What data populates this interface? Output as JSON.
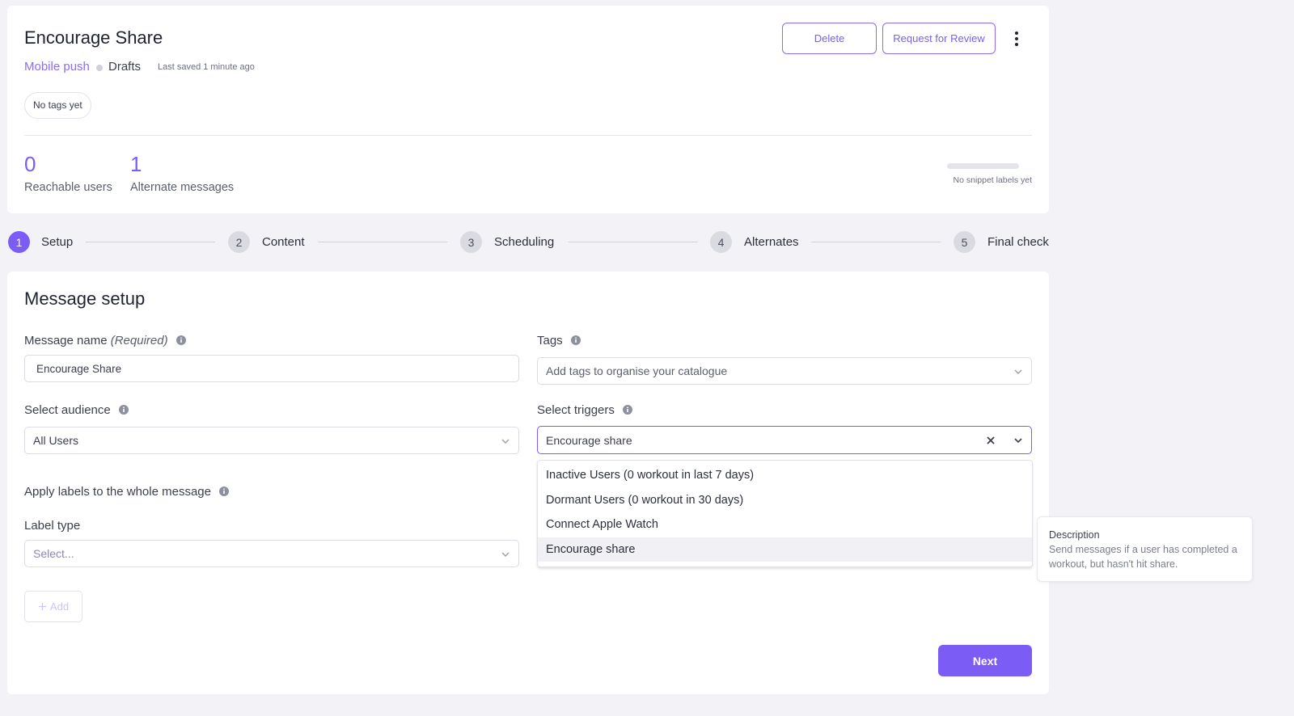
{
  "header": {
    "title": "Encourage Share",
    "channel": "Mobile push",
    "status": "Drafts",
    "last_saved": "Last saved 1 minute ago",
    "tags_chip": "No tags yet",
    "delete_label": "Delete",
    "review_label": "Request for Review",
    "stats": [
      {
        "value": "0",
        "label": "Reachable users"
      },
      {
        "value": "1",
        "label": "Alternate messages"
      }
    ],
    "snippet_labels": "No snippet labels yet"
  },
  "stepper": {
    "steps": [
      {
        "number": "1",
        "label": "Setup",
        "active": true
      },
      {
        "number": "2",
        "label": "Content"
      },
      {
        "number": "3",
        "label": "Scheduling"
      },
      {
        "number": "4",
        "label": "Alternates"
      },
      {
        "number": "5",
        "label": "Final check"
      }
    ]
  },
  "form": {
    "title": "Message setup",
    "message_name_label": "Message name",
    "required_label": "(Required)",
    "message_name_value": "Encourage Share",
    "tags_label": "Tags",
    "tags_placeholder": "Add tags to organise your catalogue",
    "audience_label": "Select audience",
    "audience_value": "All Users",
    "triggers_label": "Select triggers",
    "triggers_value": "Encourage share",
    "trigger_options": [
      "Inactive Users (0 workout in last 7 days)",
      "Dormant Users (0 workout in 30 days)",
      "Connect Apple Watch",
      "Encourage share"
    ],
    "apply_labels": "Apply labels to the whole message",
    "label_type_label": "Label type",
    "label_type_placeholder": "Select...",
    "add_label": "Add",
    "next_label": "Next"
  },
  "tooltip": {
    "title": "Description",
    "text": "Send messages if a user has completed a workout, but hasn't hit share."
  },
  "colors": {
    "accent": "#7b5cf5",
    "background": "#f3f3f7"
  }
}
